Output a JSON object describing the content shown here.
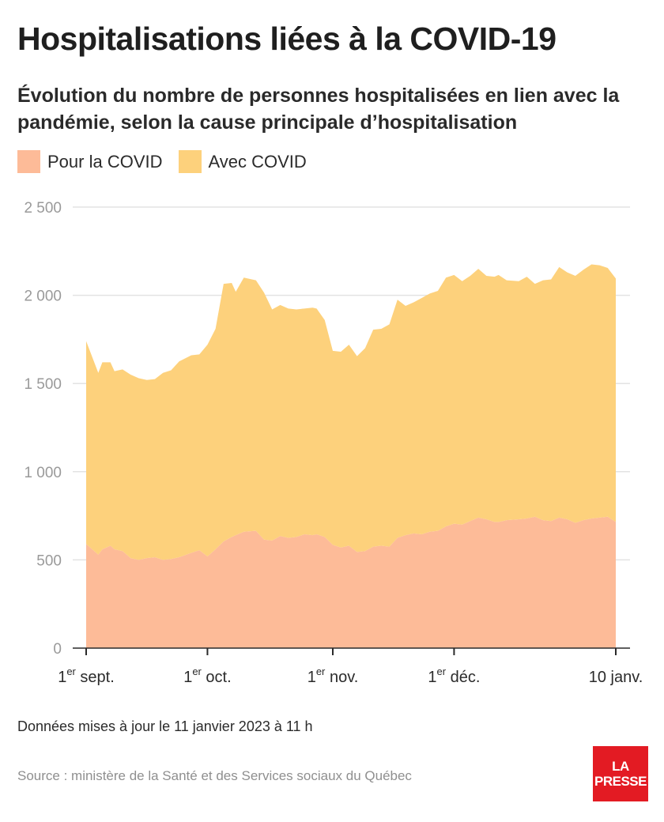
{
  "header": {
    "title": "Hospitalisations liées à la COVID-19",
    "subtitle": "Évolution du nombre de personnes hospitalisées en lien avec la pandémie, selon la cause principale d’hospitalisation"
  },
  "footer": {
    "updated": "Données mises à jour le 11 janvier 2023 à 11 h",
    "source": "Source : ministère de la Santé et des Services sociaux du Québec"
  },
  "logo": {
    "line1": "LA",
    "line2": "PRESSE",
    "color": "#e31b23"
  },
  "chart_data": {
    "type": "area",
    "stacked": true,
    "x_unit": "date",
    "x": [
      "2022-09-01",
      "2022-09-04",
      "2022-09-05",
      "2022-09-07",
      "2022-09-08",
      "2022-09-10",
      "2022-09-12",
      "2022-09-14",
      "2022-09-16",
      "2022-09-18",
      "2022-09-20",
      "2022-09-22",
      "2022-09-24",
      "2022-09-27",
      "2022-09-29",
      "2022-10-01",
      "2022-10-03",
      "2022-10-05",
      "2022-10-07",
      "2022-10-08",
      "2022-10-10",
      "2022-10-13",
      "2022-10-15",
      "2022-10-17",
      "2022-10-19",
      "2022-10-21",
      "2022-10-23",
      "2022-10-25",
      "2022-10-27",
      "2022-10-28",
      "2022-10-30",
      "2022-11-01",
      "2022-11-03",
      "2022-11-05",
      "2022-11-07",
      "2022-11-09",
      "2022-11-11",
      "2022-11-13",
      "2022-11-15",
      "2022-11-17",
      "2022-11-19",
      "2022-11-21",
      "2022-11-23",
      "2022-11-25",
      "2022-11-27",
      "2022-11-29",
      "2022-12-01",
      "2022-12-03",
      "2022-12-05",
      "2022-12-07",
      "2022-12-09",
      "2022-12-11",
      "2022-12-12",
      "2022-12-14",
      "2022-12-17",
      "2022-12-19",
      "2022-12-21",
      "2022-12-23",
      "2022-12-25",
      "2022-12-27",
      "2022-12-29",
      "2022-12-31",
      "2023-01-02",
      "2023-01-04",
      "2023-01-06",
      "2023-01-08",
      "2023-01-10"
    ],
    "series": [
      {
        "name": "Pour la COVID",
        "color": "#fdbb98",
        "values": [
          590,
          530,
          560,
          580,
          560,
          550,
          510,
          500,
          510,
          515,
          500,
          505,
          515,
          540,
          555,
          520,
          560,
          605,
          630,
          640,
          660,
          665,
          615,
          610,
          635,
          625,
          630,
          645,
          640,
          645,
          630,
          585,
          570,
          580,
          545,
          550,
          575,
          580,
          575,
          625,
          640,
          650,
          645,
          660,
          665,
          690,
          705,
          700,
          720,
          740,
          730,
          715,
          715,
          725,
          730,
          735,
          745,
          725,
          720,
          740,
          730,
          710,
          725,
          735,
          740,
          745,
          715
        ]
      },
      {
        "name": "Avec COVID",
        "color": "#fdd17c",
        "values": [
          1150,
          1030,
          1060,
          1040,
          1010,
          1030,
          1040,
          1030,
          1010,
          1010,
          1060,
          1070,
          1110,
          1120,
          1110,
          1200,
          1250,
          1460,
          1440,
          1380,
          1440,
          1420,
          1400,
          1310,
          1310,
          1300,
          1290,
          1280,
          1290,
          1280,
          1230,
          1100,
          1110,
          1140,
          1110,
          1150,
          1230,
          1230,
          1260,
          1350,
          1300,
          1310,
          1340,
          1350,
          1360,
          1410,
          1410,
          1380,
          1390,
          1410,
          1380,
          1390,
          1400,
          1360,
          1350,
          1370,
          1320,
          1360,
          1370,
          1420,
          1400,
          1400,
          1420,
          1440,
          1430,
          1410,
          1380
        ]
      }
    ],
    "legend": [
      "Pour la COVID",
      "Avec COVID"
    ],
    "legend_position": "top-left",
    "y_ticks": [
      0,
      500,
      1000,
      1500,
      2000,
      2500
    ],
    "y_tick_labels": [
      "0",
      "500",
      "1 000",
      "1 500",
      "2 000",
      "2 500"
    ],
    "ylim": [
      0,
      2500
    ],
    "x_ticks": [
      {
        "date": "2022-09-01",
        "label": "1",
        "sup": "er",
        "rest": " sept."
      },
      {
        "date": "2022-10-01",
        "label": "1",
        "sup": "er",
        "rest": " oct."
      },
      {
        "date": "2022-11-01",
        "label": "1",
        "sup": "er",
        "rest": " nov."
      },
      {
        "date": "2022-12-01",
        "label": "1",
        "sup": "er",
        "rest": " déc."
      },
      {
        "date": "2023-01-10",
        "label": "10 janv.",
        "sup": "",
        "rest": ""
      }
    ],
    "grid": true,
    "gridline_color": "#e3e3e3",
    "axis_label_color": "#9a9a9a"
  }
}
